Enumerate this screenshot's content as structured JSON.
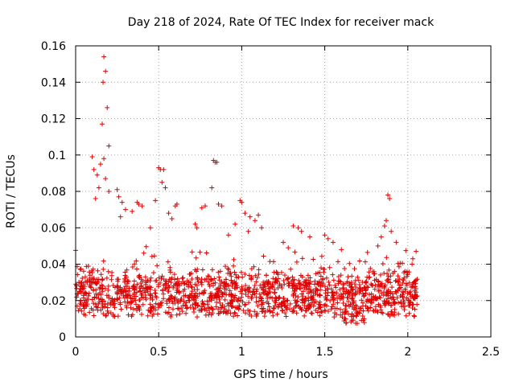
{
  "chart_data": {
    "type": "scatter",
    "title": "Day 218 of 2024, Rate Of TEC Index for receiver mack",
    "xlabel": "GPS time / hours",
    "ylabel": "ROTI / TECUs",
    "xlim": [
      0,
      2.5
    ],
    "ylim": [
      0,
      0.16
    ],
    "xticks": [
      "0",
      "0.5",
      "1",
      "1.5",
      "2",
      "2.5"
    ],
    "yticks": [
      "0",
      "0.02",
      "0.04",
      "0.06",
      "0.08",
      "0.1",
      "0.12",
      "0.14",
      "0.16"
    ],
    "grid": true,
    "marker": "+",
    "marker_color": "#e00000",
    "series": [
      {
        "name": "ROTI",
        "points": [
          [
            0.17,
            0.154
          ],
          [
            0.18,
            0.146
          ],
          [
            0.165,
            0.14
          ],
          [
            0.19,
            0.126
          ],
          [
            0.16,
            0.117
          ],
          [
            0.2,
            0.105
          ],
          [
            0.1,
            0.099
          ],
          [
            0.17,
            0.098
          ],
          [
            0.15,
            0.095
          ],
          [
            0.11,
            0.092
          ],
          [
            0.13,
            0.089
          ],
          [
            0.18,
            0.087
          ],
          [
            0.14,
            0.082
          ],
          [
            0.2,
            0.08
          ],
          [
            0.12,
            0.076
          ],
          [
            0.25,
            0.081
          ],
          [
            0.26,
            0.077
          ],
          [
            0.28,
            0.074
          ],
          [
            0.3,
            0.07
          ],
          [
            0.27,
            0.066
          ],
          [
            0.5,
            0.093
          ],
          [
            0.51,
            0.092
          ],
          [
            0.53,
            0.092
          ],
          [
            0.52,
            0.085
          ],
          [
            0.54,
            0.082
          ],
          [
            0.48,
            0.075
          ],
          [
            0.56,
            0.068
          ],
          [
            0.6,
            0.072
          ],
          [
            0.61,
            0.073
          ],
          [
            0.58,
            0.065
          ],
          [
            0.83,
            0.097
          ],
          [
            0.84,
            0.096
          ],
          [
            0.85,
            0.096
          ],
          [
            0.82,
            0.082
          ],
          [
            0.78,
            0.072
          ],
          [
            0.76,
            0.071
          ],
          [
            0.86,
            0.073
          ],
          [
            0.88,
            0.072
          ],
          [
            0.72,
            0.062
          ],
          [
            0.73,
            0.06
          ],
          [
            0.99,
            0.075
          ],
          [
            1.0,
            0.074
          ],
          [
            1.02,
            0.068
          ],
          [
            1.05,
            0.066
          ],
          [
            1.08,
            0.064
          ],
          [
            1.1,
            0.067
          ],
          [
            0.96,
            0.062
          ],
          [
            1.12,
            0.06
          ],
          [
            1.04,
            0.058
          ],
          [
            0.92,
            0.056
          ],
          [
            1.88,
            0.078
          ],
          [
            1.89,
            0.076
          ],
          [
            1.87,
            0.064
          ],
          [
            1.9,
            0.058
          ],
          [
            1.86,
            0.061
          ],
          [
            1.84,
            0.055
          ],
          [
            1.82,
            0.05
          ],
          [
            1.93,
            0.052
          ],
          [
            2.03,
            0.043
          ],
          [
            2.05,
            0.047
          ],
          [
            0.37,
            0.074
          ],
          [
            0.38,
            0.073
          ],
          [
            0.4,
            0.072
          ],
          [
            0.34,
            0.069
          ],
          [
            0.45,
            0.06
          ],
          [
            1.31,
            0.061
          ],
          [
            1.34,
            0.06
          ],
          [
            1.36,
            0.058
          ],
          [
            1.41,
            0.055
          ],
          [
            1.5,
            0.056
          ],
          [
            1.52,
            0.054
          ],
          [
            1.55,
            0.052
          ],
          [
            1.25,
            0.052
          ],
          [
            1.28,
            0.049
          ],
          [
            1.6,
            0.048
          ]
        ]
      }
    ]
  }
}
